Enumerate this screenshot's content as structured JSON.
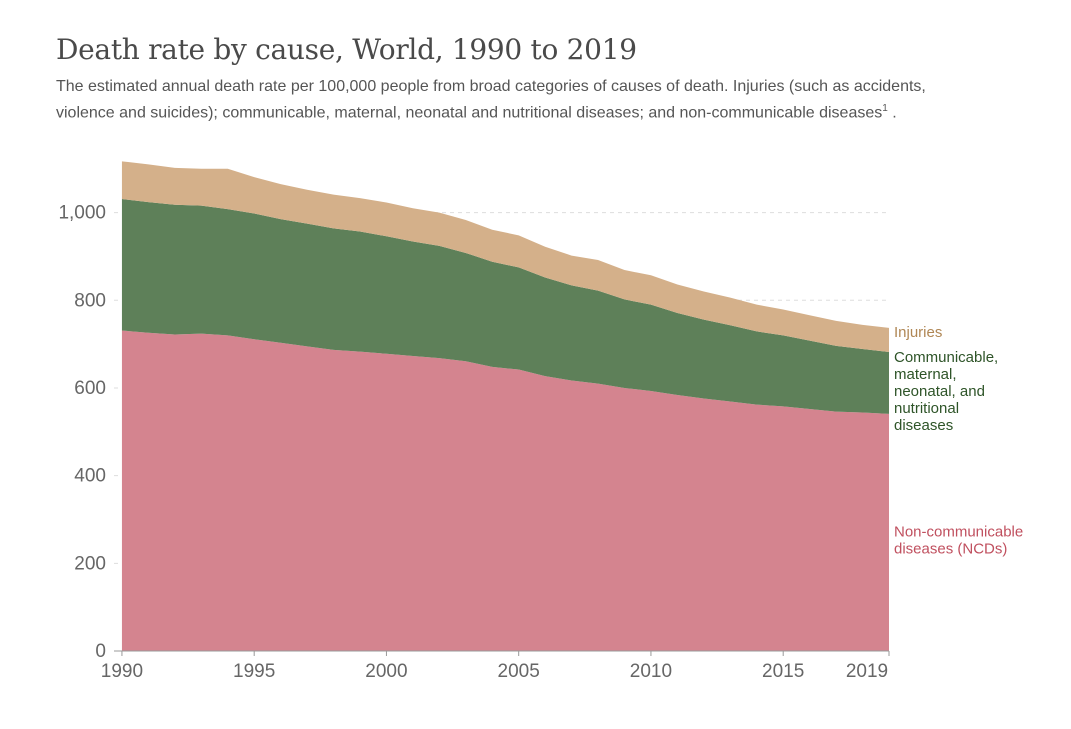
{
  "header": {
    "title": "Death rate by cause, World, 1990 to 2019",
    "subtitle": "The estimated annual death rate per 100,000 people from broad categories of causes of death. Injuries (such as accidents, violence and suicides); communicable, maternal, neonatal and nutritional diseases; and non-communicable diseases",
    "subtitle_sup": "1",
    "subtitle_end": " ."
  },
  "chart_data": {
    "type": "area",
    "stacked": true,
    "x": [
      1990,
      1991,
      1992,
      1993,
      1994,
      1995,
      1996,
      1997,
      1998,
      1999,
      2000,
      2001,
      2002,
      2003,
      2004,
      2005,
      2006,
      2007,
      2008,
      2009,
      2010,
      2011,
      2012,
      2013,
      2014,
      2015,
      2016,
      2017,
      2018,
      2019
    ],
    "series": [
      {
        "name": "Non-communicable diseases (NCDs)",
        "label_lines": [
          "Non-communicable",
          "diseases (NCDs)"
        ],
        "color": "#d4848f",
        "label_color": "#c0505f",
        "values": [
          731,
          726,
          722,
          724,
          720,
          711,
          703,
          695,
          687,
          683,
          678,
          673,
          668,
          661,
          648,
          642,
          627,
          617,
          610,
          600,
          593,
          584,
          576,
          569,
          562,
          558,
          552,
          546,
          544,
          541
        ]
      },
      {
        "name": "Communicable, maternal, neonatal, and nutritional diseases",
        "label_lines": [
          "Communicable,",
          "maternal,",
          "neonatal, and",
          "nutritional",
          "diseases"
        ],
        "color": "#5e8059",
        "label_color": "#2e5428",
        "values": [
          300,
          298,
          296,
          292,
          288,
          287,
          282,
          280,
          277,
          274,
          268,
          261,
          256,
          247,
          240,
          233,
          225,
          217,
          212,
          202,
          197,
          187,
          180,
          174,
          167,
          162,
          156,
          150,
          145,
          141
        ]
      },
      {
        "name": "Injuries",
        "label_lines": [
          "Injuries"
        ],
        "color": "#d4b08a",
        "label_color": "#b08755",
        "values": [
          86,
          86,
          84,
          84,
          92,
          83,
          80,
          77,
          77,
          76,
          77,
          76,
          76,
          75,
          73,
          73,
          70,
          68,
          70,
          67,
          67,
          65,
          64,
          63,
          61,
          59,
          58,
          57,
          55,
          55
        ]
      }
    ],
    "xlim": [
      1989.7,
      2019
    ],
    "ylim": [
      0,
      1120
    ],
    "x_ticks": [
      1990,
      1995,
      2000,
      2005,
      2010,
      2015,
      2019
    ],
    "y_ticks": [
      0,
      200,
      400,
      600,
      800,
      1000
    ],
    "y_tick_labels": [
      "0",
      "200",
      "400",
      "600",
      "800",
      "1,000"
    ],
    "grid": true
  }
}
